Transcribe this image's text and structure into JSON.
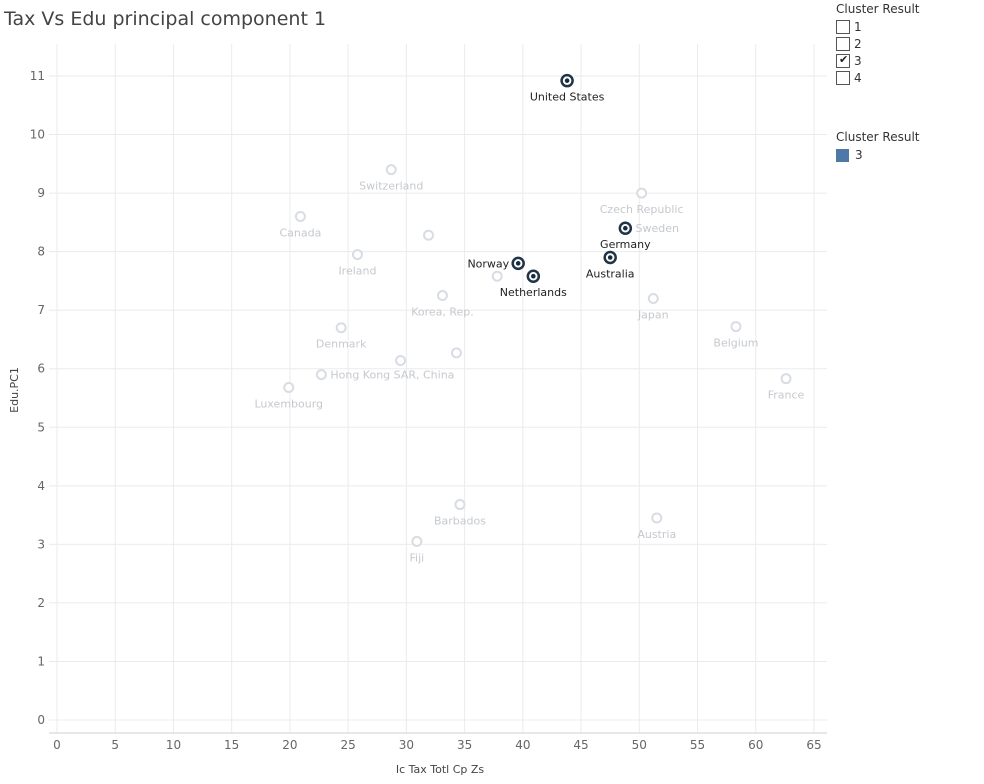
{
  "title": "Tax Vs Edu principal component 1",
  "filter": {
    "title": "Cluster Result",
    "items": [
      {
        "label": "1",
        "checked": false
      },
      {
        "label": "2",
        "checked": false
      },
      {
        "label": "3",
        "checked": true
      },
      {
        "label": "4",
        "checked": false
      }
    ]
  },
  "legend": {
    "title": "Cluster Result",
    "items": [
      {
        "label": "3",
        "color": "#4e79a7"
      }
    ]
  },
  "colors": {
    "highlight_fill": "#1b2a3a",
    "highlight_stroke": "#1f3446",
    "dim_stroke": "#d8dde3",
    "dim_text": "#c5c9ce",
    "highlight_text": "#222222",
    "grid": "#ebebeb"
  },
  "chart_data": {
    "type": "scatter",
    "title": "Tax Vs Edu principal component 1",
    "xlabel": "Ic Tax Totl Cp Zs",
    "ylabel": "Edu.PC1",
    "xlim": [
      0,
      65
    ],
    "ylim": [
      0,
      11
    ],
    "xticks": [
      0,
      5,
      10,
      15,
      20,
      25,
      30,
      35,
      40,
      45,
      50,
      55,
      60,
      65
    ],
    "yticks": [
      0,
      1,
      2,
      3,
      4,
      5,
      6,
      7,
      8,
      9,
      10,
      11
    ],
    "grid": true,
    "points": [
      {
        "label": "United States",
        "x": 43.8,
        "y": 10.92,
        "highlighted": true,
        "label_pos": "below"
      },
      {
        "label": "Germany",
        "x": 48.8,
        "y": 8.4,
        "highlighted": true,
        "label_pos": "below"
      },
      {
        "label": "Australia",
        "x": 47.5,
        "y": 7.9,
        "highlighted": true,
        "label_pos": "below"
      },
      {
        "label": "Norway",
        "x": 39.6,
        "y": 7.8,
        "highlighted": true,
        "label_pos": "left"
      },
      {
        "label": "Netherlands",
        "x": 40.9,
        "y": 7.58,
        "highlighted": true,
        "label_pos": "below"
      },
      {
        "label": "Switzerland",
        "x": 28.7,
        "y": 9.4,
        "highlighted": false,
        "label_pos": "below"
      },
      {
        "label": "Czech Republic",
        "x": 50.2,
        "y": 9.0,
        "highlighted": false,
        "label_pos": "below"
      },
      {
        "label": "Sweden",
        "x": 48.9,
        "y": 8.4,
        "highlighted": false,
        "label_pos": "right"
      },
      {
        "label": "Canada",
        "x": 20.9,
        "y": 8.6,
        "highlighted": false,
        "label_pos": "below"
      },
      {
        "label": "Ireland",
        "x": 25.8,
        "y": 7.95,
        "highlighted": false,
        "label_pos": "below"
      },
      {
        "label": "",
        "x": 31.9,
        "y": 8.28,
        "highlighted": false,
        "label_pos": "none"
      },
      {
        "label": "",
        "x": 37.8,
        "y": 7.58,
        "highlighted": false,
        "label_pos": "none"
      },
      {
        "label": "Korea, Rep.",
        "x": 33.1,
        "y": 7.25,
        "highlighted": false,
        "label_pos": "below"
      },
      {
        "label": "Japan",
        "x": 51.2,
        "y": 7.2,
        "highlighted": false,
        "label_pos": "below"
      },
      {
        "label": "Belgium",
        "x": 58.3,
        "y": 6.72,
        "highlighted": false,
        "label_pos": "below"
      },
      {
        "label": "Denmark",
        "x": 24.4,
        "y": 6.7,
        "highlighted": false,
        "label_pos": "below"
      },
      {
        "label": "",
        "x": 34.3,
        "y": 6.27,
        "highlighted": false,
        "label_pos": "none"
      },
      {
        "label": "",
        "x": 29.5,
        "y": 6.14,
        "highlighted": false,
        "label_pos": "none"
      },
      {
        "label": "Hong Kong SAR, China",
        "x": 22.7,
        "y": 5.9,
        "highlighted": false,
        "label_pos": "right"
      },
      {
        "label": "France",
        "x": 62.6,
        "y": 5.83,
        "highlighted": false,
        "label_pos": "below"
      },
      {
        "label": "Luxembourg",
        "x": 19.9,
        "y": 5.68,
        "highlighted": false,
        "label_pos": "below"
      },
      {
        "label": "Barbados",
        "x": 34.6,
        "y": 3.68,
        "highlighted": false,
        "label_pos": "below"
      },
      {
        "label": "Austria",
        "x": 51.5,
        "y": 3.45,
        "highlighted": false,
        "label_pos": "below"
      },
      {
        "label": "Fiji",
        "x": 30.9,
        "y": 3.05,
        "highlighted": false,
        "label_pos": "below"
      }
    ]
  }
}
